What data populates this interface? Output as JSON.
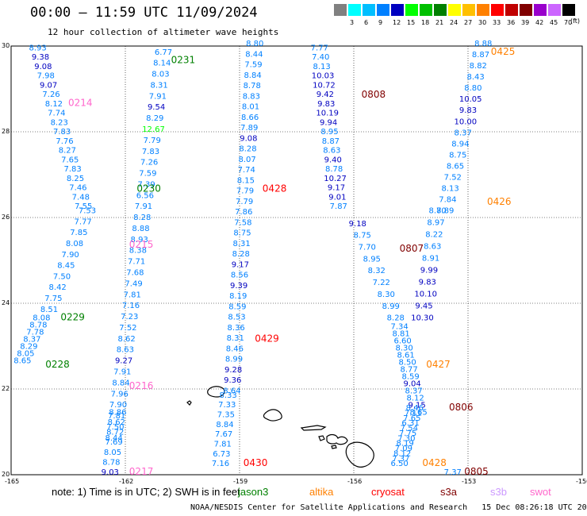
{
  "title": "00:00 — 11:59 UTC 11/09/2024",
  "subtitle": "12 hour collection of altimeter wave heights",
  "legend": {
    "unit": "(ft)",
    "bins": [
      {
        "label": "",
        "color": "#808080"
      },
      {
        "label": "3",
        "color": "#00ffff"
      },
      {
        "label": "6",
        "color": "#00bfff"
      },
      {
        "label": "9",
        "color": "#0080ff"
      },
      {
        "label": "12",
        "color": "#0000c0"
      },
      {
        "label": "15",
        "color": "#00ff00"
      },
      {
        "label": "18",
        "color": "#00c000"
      },
      {
        "label": "21",
        "color": "#008000"
      },
      {
        "label": "24",
        "color": "#ffff00"
      },
      {
        "label": "27",
        "color": "#ffc000"
      },
      {
        "label": "30",
        "color": "#ff8000"
      },
      {
        "label": "33",
        "color": "#ff0000"
      },
      {
        "label": "36",
        "color": "#c00000"
      },
      {
        "label": "39",
        "color": "#800000"
      },
      {
        "label": "42",
        "color": "#9900cc"
      },
      {
        "label": "45",
        "color": "#cc66ff"
      },
      {
        "label": "70",
        "color": "#000000"
      }
    ]
  },
  "axes": {
    "lon_ticks": [
      "-165",
      "-162",
      "-159",
      "-156",
      "-153",
      "-150"
    ],
    "lat_ticks": [
      "30",
      "28",
      "26",
      "24",
      "22",
      "20"
    ]
  },
  "tracks": [
    {
      "id": "0231",
      "label": "0231",
      "label_color": "#008000",
      "label_lon": -160.8,
      "label_lat": 29.6,
      "start": [
        -161.0,
        29.8
      ],
      "end": [
        -162.3,
        20.8
      ],
      "values": [
        "6.77",
        "8.14",
        "8.03",
        "8.31",
        "7.91",
        "9.54",
        "8.29",
        "12.67",
        "7.79",
        "7.83",
        "7.26",
        "7.59",
        "7.39",
        "6.56",
        "7.91",
        "8.28",
        "8.88",
        "8.93",
        "8.38",
        "7.71",
        "7.68",
        "7.49",
        "7.81",
        "7.16",
        "7.23",
        "7.52",
        "8.62",
        "8.63",
        "9.27",
        "7.91",
        "8.84",
        "7.96",
        "7.90",
        "7.81",
        "7.50",
        "8.44"
      ]
    },
    {
      "id": "0214",
      "label": "0214",
      "label_color": "#ff66cc",
      "label_lon": -163.5,
      "label_lat": 28.6,
      "start": [
        -164.3,
        29.9
      ],
      "end": [
        -163.1,
        26.2
      ],
      "values": [
        "8.93",
        "9.38",
        "9.08",
        "7.98",
        "9.07",
        "7.26",
        "8.12",
        "7.74",
        "8.23",
        "7.83",
        "7.76",
        "8.27",
        "7.65",
        "7.83",
        "8.25",
        "7.46",
        "7.48",
        "7.55"
      ]
    },
    {
      "id": "0230",
      "label": "0230",
      "label_color": "#008000",
      "label_lon": -161.7,
      "label_lat": 26.6
    },
    {
      "id": "0215",
      "label": "0215",
      "label_color": "#ff66cc",
      "label_lon": -161.9,
      "label_lat": 25.3,
      "start": [
        -163.0,
        26.1
      ],
      "end": [
        -164.0,
        23.8
      ],
      "values": [
        "7.53",
        "7.77",
        "7.85",
        "8.08",
        "7.90",
        "8.45",
        "7.50",
        "8.42",
        "7.75",
        "8.51"
      ]
    },
    {
      "id": "0229",
      "label": "0229",
      "label_color": "#008000",
      "label_lon": -163.7,
      "label_lat": 23.6,
      "start": [
        -164.2,
        23.6
      ],
      "end": [
        -164.7,
        22.6
      ],
      "values": [
        "8.08",
        "8.78",
        "7.78",
        "8.37",
        "8.29",
        "8.05",
        "8.65"
      ]
    },
    {
      "id": "0228",
      "label": "0228",
      "label_color": "#008000",
      "label_lon": -164.1,
      "label_lat": 22.5
    },
    {
      "id": "0216",
      "label": "0216",
      "label_color": "#ff66cc",
      "label_lon": -161.9,
      "label_lat": 22.0
    },
    {
      "id": "0217",
      "label": "0217",
      "label_color": "#ff66cc",
      "label_lon": -161.9,
      "label_lat": 20.0,
      "start": [
        -162.2,
        21.4
      ],
      "end": [
        -162.4,
        20.0
      ],
      "values": [
        "8.86",
        "8.62",
        "8.72",
        "7.69",
        "8.05",
        "8.78",
        "9.03"
      ]
    },
    {
      "id": "0428",
      "label": "0428",
      "label_color": "#ff0000",
      "label_lon": -158.4,
      "label_lat": 26.6,
      "start": [
        -158.6,
        30.0
      ],
      "end": [
        -159.2,
        21.9
      ],
      "values": [
        "8.80",
        "8.44",
        "7.59",
        "8.84",
        "8.78",
        "8.83",
        "8.01",
        "8.66",
        "7.89",
        "9.08",
        "8.28",
        "8.07",
        "7.74",
        "8.15",
        "7.79",
        "7.79",
        "7.86",
        "7.58",
        "8.75",
        "8.31",
        "8.28",
        "9.17",
        "8.56",
        "9.39",
        "8.19",
        "8.59",
        "8.53",
        "8.36",
        "8.31",
        "8.46",
        "8.99",
        "9.28",
        "9.36",
        "8.64"
      ]
    },
    {
      "id": "0429",
      "label": "0429",
      "label_color": "#ff0000",
      "label_lon": -158.6,
      "label_lat": 23.1
    },
    {
      "id": "0430",
      "label": "0430",
      "label_color": "#ff0000",
      "label_lon": -158.9,
      "label_lat": 20.2,
      "start": [
        -159.3,
        21.8
      ],
      "end": [
        -159.5,
        20.2
      ],
      "values": [
        "8.33",
        "7.33",
        "7.35",
        "8.84",
        "7.67",
        "7.81",
        "6.73",
        "7.16"
      ]
    },
    {
      "id": "0808",
      "label": "0808",
      "label_color": "#800000",
      "label_lon": -155.8,
      "label_lat": 28.8,
      "start": [
        -156.9,
        29.9
      ],
      "end": [
        -156.4,
        26.2
      ],
      "values": [
        "7.77",
        "7.40",
        "8.13",
        "10.03",
        "10.72",
        "9.42",
        "9.83",
        "10.19",
        "9.94",
        "8.95",
        "8.87",
        "8.63",
        "9.40",
        "8.78",
        "10.27",
        "9.17",
        "9.01",
        "7.87"
      ]
    },
    {
      "id": "0807",
      "label": "0807",
      "label_color": "#800000",
      "label_lon": -154.8,
      "label_lat": 25.2,
      "start": [
        -155.9,
        25.8
      ],
      "end": [
        -154.9,
        23.6
      ],
      "values": [
        "9.18",
        "8.75",
        "7.70",
        "8.95",
        "8.32",
        "7.22",
        "8.30",
        "8.99",
        "8.28"
      ]
    },
    {
      "id": "0425",
      "label": "0425",
      "label_color": "#ff8000",
      "label_lon": -152.4,
      "label_lat": 29.8,
      "start": [
        -152.6,
        30.0
      ],
      "end": [
        -153.6,
        26.1
      ],
      "values": [
        "8.88",
        "8.87",
        "8.82",
        "8.43",
        "8.80",
        "10.05",
        "9.83",
        "10.00",
        "8.37",
        "8.94",
        "8.75",
        "8.65",
        "7.52",
        "8.13",
        "7.84",
        "8.89"
      ]
    },
    {
      "id": "0426",
      "label": "0426",
      "label_color": "#ff8000",
      "label_lon": -152.5,
      "label_lat": 26.3,
      "start": [
        -153.8,
        26.1
      ],
      "end": [
        -154.2,
        23.6
      ],
      "values": [
        "8.70",
        "8.97",
        "8.22",
        "8.63",
        "8.91",
        "9.99",
        "9.83",
        "10.10",
        "9.45",
        "10.30"
      ]
    },
    {
      "id": "0427",
      "label": "0427",
      "label_color": "#ff8000",
      "label_lon": -154.1,
      "label_lat": 22.5,
      "start": [
        -154.8,
        23.4
      ],
      "end": [
        -154.3,
        21.4
      ],
      "values": [
        "7.34",
        "8.81",
        "6.60",
        "8.30",
        "8.61",
        "8.50",
        "8.77",
        "8.59",
        "9.04",
        "8.37",
        "8.12",
        "9.15",
        "8.65"
      ]
    },
    {
      "id": "0806",
      "label": "0806",
      "label_color": "#800000",
      "label_lon": -153.5,
      "label_lat": 21.5,
      "start": [
        -154.4,
        21.5
      ],
      "end": [
        -154.8,
        20.2
      ],
      "values": [
        "8.46",
        "7.11",
        "7.65",
        "6.31",
        "7.54",
        "7.75",
        "7.30",
        "8.19",
        "7.09",
        "8.12",
        "7.37",
        "6.50"
      ]
    },
    {
      "id": "0428b",
      "label": "0428",
      "label_color": "#ff8000",
      "label_lon": -154.2,
      "label_lat": 20.2
    },
    {
      "id": "0805",
      "label": "0805",
      "label_color": "#800000",
      "label_lon": -153.1,
      "label_lat": 20.0,
      "start": [
        -153.4,
        20.0
      ],
      "end": [
        -153.4,
        20.0
      ],
      "values": [
        "7.37"
      ]
    }
  ],
  "note": {
    "text": "note: 1) Time is in UTC; 2) SWH is in feet",
    "sats": [
      {
        "name": "jason3",
        "color": "#008000"
      },
      {
        "name": "altika",
        "color": "#ff8000"
      },
      {
        "name": "cryosat",
        "color": "#ff0000"
      },
      {
        "name": "s3a",
        "color": "#800000"
      },
      {
        "name": "s3b",
        "color": "#cc99ff"
      },
      {
        "name": "swot",
        "color": "#ff66cc"
      }
    ]
  },
  "credit": "NOAA/NESDIS Center for Satellite Applications and Research   15 Dec 08:26:18 UTC 2024"
}
